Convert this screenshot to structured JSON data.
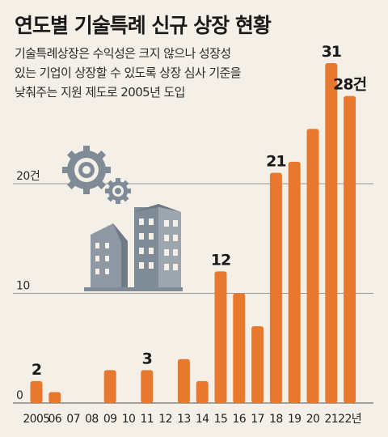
{
  "title": "연도별 기술특례 신규 상장 현황",
  "subtitle_lines": [
    "기술특례상장은 수익성은 크지 않으나 성장성",
    "있는 기업이 상장할 수 있도록 상장 심사 기준을",
    "낮춰주는 지원 제도로 2005년 도입"
  ],
  "colors": {
    "bar": "#e8782e",
    "background": "#f4f0e7",
    "grid": "#9a9a9a",
    "illustration": "#7f8b96"
  },
  "illustration": {
    "icons": [
      "gear-icon",
      "gear-icon",
      "building-icon"
    ]
  },
  "chart_data": {
    "type": "bar",
    "categories": [
      "2005",
      "06",
      "07",
      "08",
      "09",
      "10",
      "11",
      "12",
      "13",
      "14",
      "15",
      "16",
      "17",
      "18",
      "19",
      "20",
      "21",
      "22년"
    ],
    "values": [
      2,
      1,
      0,
      0,
      3,
      0,
      3,
      0,
      4,
      2,
      12,
      10,
      7,
      21,
      22,
      25,
      31,
      28
    ],
    "data_labels": [
      {
        "index": 0,
        "text": "2"
      },
      {
        "index": 6,
        "text": "3"
      },
      {
        "index": 10,
        "text": "12"
      },
      {
        "index": 13,
        "text": "21"
      },
      {
        "index": 16,
        "text": "31"
      },
      {
        "index": 17,
        "text": "28건"
      }
    ],
    "y_ticks": [
      {
        "value": 0,
        "label": "0"
      },
      {
        "value": 10,
        "label": "10"
      },
      {
        "value": 20,
        "label": "20건"
      }
    ],
    "ylim": [
      0,
      33
    ],
    "grid": true,
    "xlabel": "",
    "ylabel": ""
  }
}
